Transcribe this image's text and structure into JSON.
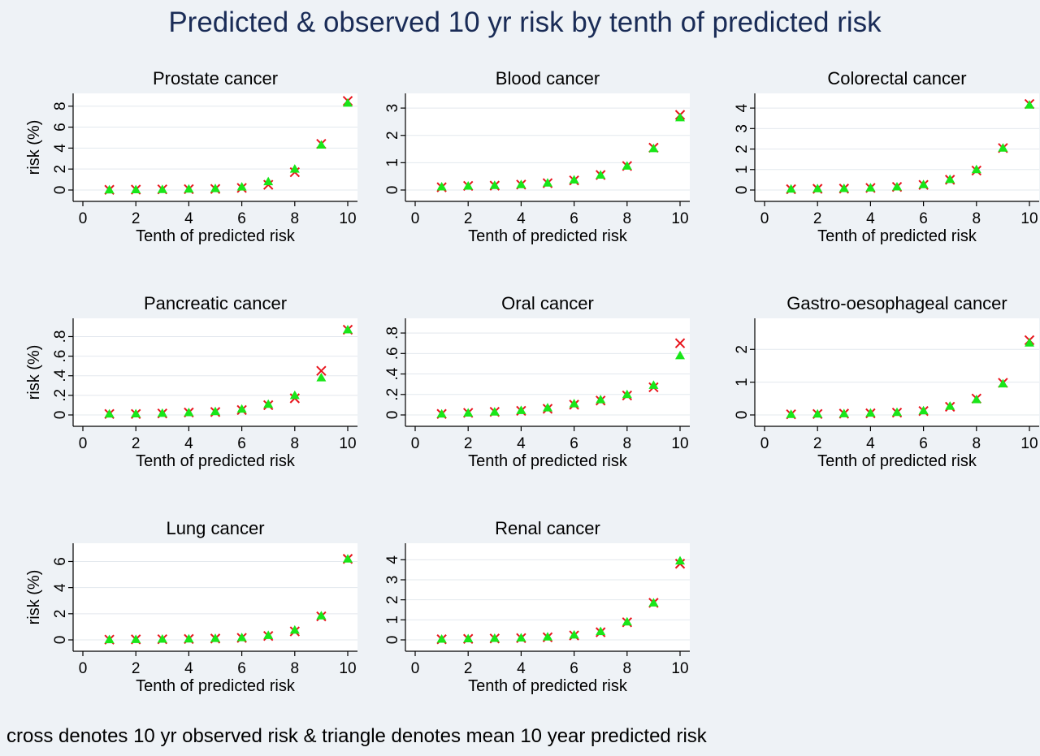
{
  "figure": {
    "title": "Predicted & observed 10 yr risk by tenth of predicted risk",
    "note": "cross denotes 10 yr observed risk & triangle denotes mean 10 year predicted risk"
  },
  "style": {
    "background": "#eef2f6",
    "plot_background": "#ffffff",
    "grid_color": "#e3e8ee",
    "observed_color": "#e8141c",
    "predicted_color": "#19e619",
    "title_color": "#1a2c57"
  },
  "legend_meaning": {
    "cross": "10 yr observed risk",
    "triangle": "mean 10 year predicted risk"
  },
  "chart_data": [
    {
      "type": "scatter",
      "title": "Prostate cancer",
      "xlabel": "Tenth of predicted risk",
      "ylabel": "risk (%)",
      "xlim": [
        0,
        10
      ],
      "ylim": [
        0,
        8.6
      ],
      "xticks": [
        0,
        2,
        4,
        6,
        8,
        10
      ],
      "xtick_labels": [
        "0",
        "2",
        "4",
        "6",
        "8",
        "10"
      ],
      "yticks": [
        0,
        2,
        4,
        6,
        8
      ],
      "ytick_labels": [
        "0",
        "2",
        "4",
        "6",
        "8"
      ],
      "grid": true,
      "x": [
        1,
        2,
        3,
        4,
        5,
        6,
        7,
        8,
        9,
        10
      ],
      "series": [
        {
          "marker": "cross",
          "values": [
            0.02,
            0.04,
            0.06,
            0.08,
            0.1,
            0.2,
            0.5,
            1.7,
            4.4,
            8.5
          ]
        },
        {
          "marker": "triangle",
          "values": [
            0.02,
            0.04,
            0.06,
            0.1,
            0.15,
            0.3,
            0.8,
            2.0,
            4.3,
            8.3
          ]
        }
      ]
    },
    {
      "type": "scatter",
      "title": "Blood cancer",
      "xlabel": "Tenth of predicted risk",
      "ylabel": "",
      "xlim": [
        0,
        10
      ],
      "ylim": [
        0,
        3.3
      ],
      "xticks": [
        0,
        2,
        4,
        6,
        8,
        10
      ],
      "xtick_labels": [
        "0",
        "2",
        "4",
        "6",
        "8",
        "10"
      ],
      "yticks": [
        0,
        1,
        2,
        3
      ],
      "ytick_labels": [
        "0",
        "1",
        "2",
        "3"
      ],
      "grid": true,
      "x": [
        1,
        2,
        3,
        4,
        5,
        6,
        7,
        8,
        9,
        10
      ],
      "series": [
        {
          "marker": "cross",
          "values": [
            0.1,
            0.15,
            0.16,
            0.2,
            0.25,
            0.35,
            0.55,
            0.88,
            1.55,
            2.75
          ]
        },
        {
          "marker": "triangle",
          "values": [
            0.12,
            0.15,
            0.17,
            0.2,
            0.26,
            0.37,
            0.55,
            0.88,
            1.52,
            2.65
          ]
        }
      ]
    },
    {
      "type": "scatter",
      "title": "Colorectal cancer",
      "xlabel": "Tenth of predicted risk",
      "ylabel": "",
      "xlim": [
        0,
        10
      ],
      "ylim": [
        0,
        4.4
      ],
      "xticks": [
        0,
        2,
        4,
        6,
        8,
        10
      ],
      "xtick_labels": [
        "0",
        "2",
        "4",
        "6",
        "8",
        "10"
      ],
      "yticks": [
        0,
        1,
        2,
        3,
        4
      ],
      "ytick_labels": [
        "0",
        "1",
        "2",
        "3",
        "4"
      ],
      "grid": true,
      "x": [
        1,
        2,
        3,
        4,
        5,
        6,
        7,
        8,
        9,
        10
      ],
      "series": [
        {
          "marker": "cross",
          "values": [
            0.04,
            0.06,
            0.07,
            0.1,
            0.15,
            0.25,
            0.5,
            0.95,
            2.05,
            4.2
          ]
        },
        {
          "marker": "triangle",
          "values": [
            0.05,
            0.07,
            0.08,
            0.11,
            0.16,
            0.27,
            0.52,
            1.0,
            2.05,
            4.15
          ]
        }
      ]
    },
    {
      "type": "scatter",
      "title": "Pancreatic cancer",
      "xlabel": "Tenth of predicted risk",
      "ylabel": "risk (%)",
      "xlim": [
        0,
        10
      ],
      "ylim": [
        0,
        0.92
      ],
      "xticks": [
        0,
        2,
        4,
        6,
        8,
        10
      ],
      "xtick_labels": [
        "0",
        "2",
        "4",
        "6",
        "8",
        "10"
      ],
      "yticks": [
        0,
        0.2,
        0.4,
        0.6,
        0.8
      ],
      "ytick_labels": [
        "0",
        ".2",
        ".4",
        ".6",
        ".8"
      ],
      "grid": true,
      "x": [
        1,
        2,
        3,
        4,
        5,
        6,
        7,
        8,
        9,
        10
      ],
      "series": [
        {
          "marker": "cross",
          "values": [
            0.01,
            0.01,
            0.015,
            0.025,
            0.03,
            0.05,
            0.1,
            0.17,
            0.45,
            0.87
          ]
        },
        {
          "marker": "triangle",
          "values": [
            0.01,
            0.012,
            0.018,
            0.025,
            0.035,
            0.06,
            0.11,
            0.2,
            0.38,
            0.87
          ]
        }
      ]
    },
    {
      "type": "scatter",
      "title": "Oral cancer",
      "xlabel": "Tenth of predicted risk",
      "ylabel": "",
      "xlim": [
        0,
        10
      ],
      "ylim": [
        0,
        0.88
      ],
      "xticks": [
        0,
        2,
        4,
        6,
        8,
        10
      ],
      "xtick_labels": [
        "0",
        "2",
        "4",
        "6",
        "8",
        "10"
      ],
      "yticks": [
        0,
        0.2,
        0.4,
        0.6,
        0.8
      ],
      "ytick_labels": [
        "0",
        ".2",
        ".4",
        ".6",
        ".8"
      ],
      "grid": true,
      "x": [
        1,
        2,
        3,
        4,
        5,
        6,
        7,
        8,
        9,
        10
      ],
      "series": [
        {
          "marker": "cross",
          "values": [
            0.01,
            0.02,
            0.03,
            0.04,
            0.06,
            0.1,
            0.14,
            0.19,
            0.27,
            0.7
          ]
        },
        {
          "marker": "triangle",
          "values": [
            0.01,
            0.02,
            0.03,
            0.045,
            0.07,
            0.11,
            0.15,
            0.2,
            0.29,
            0.58
          ]
        }
      ]
    },
    {
      "type": "scatter",
      "title": "Gastro-oesophageal cancer",
      "xlabel": "Tenth of predicted risk",
      "ylabel": "",
      "xlim": [
        0,
        10
      ],
      "ylim": [
        0,
        2.75
      ],
      "xticks": [
        0,
        2,
        4,
        6,
        8,
        10
      ],
      "xtick_labels": [
        "0",
        "2",
        "4",
        "6",
        "8",
        "10"
      ],
      "yticks": [
        0,
        1,
        2
      ],
      "ytick_labels": [
        "0",
        "1",
        "2"
      ],
      "grid": true,
      "x": [
        1,
        2,
        3,
        4,
        5,
        6,
        7,
        8,
        9,
        10
      ],
      "series": [
        {
          "marker": "cross",
          "values": [
            0.02,
            0.03,
            0.04,
            0.05,
            0.07,
            0.12,
            0.25,
            0.5,
            0.98,
            2.28
          ]
        },
        {
          "marker": "triangle",
          "values": [
            0.02,
            0.03,
            0.04,
            0.06,
            0.08,
            0.13,
            0.27,
            0.47,
            0.95,
            2.2
          ]
        }
      ]
    },
    {
      "type": "scatter",
      "title": "Lung cancer",
      "xlabel": "Tenth of predicted risk",
      "ylabel": "risk (%)",
      "xlim": [
        0,
        10
      ],
      "ylim": [
        0,
        6.9
      ],
      "xticks": [
        0,
        2,
        4,
        6,
        8,
        10
      ],
      "xtick_labels": [
        "0",
        "2",
        "4",
        "6",
        "8",
        "10"
      ],
      "yticks": [
        0,
        2,
        4,
        6
      ],
      "ytick_labels": [
        "0",
        "2",
        "4",
        "6"
      ],
      "grid": true,
      "x": [
        1,
        2,
        3,
        4,
        5,
        6,
        7,
        8,
        9,
        10
      ],
      "series": [
        {
          "marker": "cross",
          "values": [
            0.02,
            0.04,
            0.05,
            0.07,
            0.1,
            0.15,
            0.3,
            0.65,
            1.8,
            6.2
          ]
        },
        {
          "marker": "triangle",
          "values": [
            0.02,
            0.04,
            0.06,
            0.08,
            0.12,
            0.18,
            0.35,
            0.75,
            1.85,
            6.2
          ]
        }
      ]
    },
    {
      "type": "scatter",
      "title": "Renal cancer",
      "xlabel": "Tenth of predicted risk",
      "ylabel": "",
      "xlim": [
        0,
        10
      ],
      "ylim": [
        0,
        4.5
      ],
      "xticks": [
        0,
        2,
        4,
        6,
        8,
        10
      ],
      "xtick_labels": [
        "0",
        "2",
        "4",
        "6",
        "8",
        "10"
      ],
      "yticks": [
        0,
        1,
        2,
        3,
        4
      ],
      "ytick_labels": [
        "0",
        "1",
        "2",
        "3",
        "4"
      ],
      "grid": true,
      "x": [
        1,
        2,
        3,
        4,
        5,
        6,
        7,
        8,
        9,
        10
      ],
      "series": [
        {
          "marker": "cross",
          "values": [
            0.03,
            0.05,
            0.07,
            0.09,
            0.13,
            0.22,
            0.38,
            0.88,
            1.85,
            3.8
          ]
        },
        {
          "marker": "triangle",
          "values": [
            0.04,
            0.06,
            0.08,
            0.1,
            0.15,
            0.25,
            0.42,
            0.9,
            1.85,
            3.95
          ]
        }
      ]
    }
  ]
}
